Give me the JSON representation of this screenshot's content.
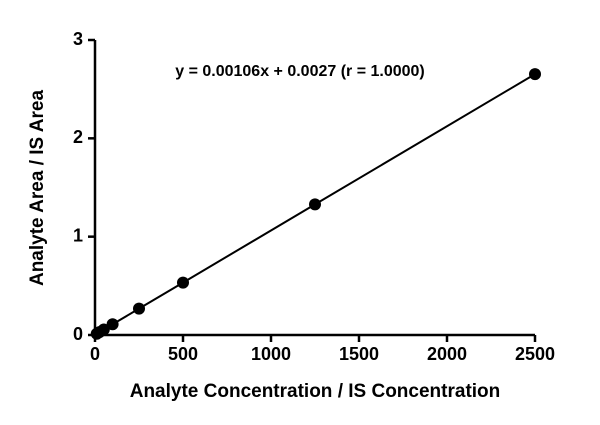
{
  "chart_data": {
    "type": "scatter",
    "annotation": "y = 0.00106x + 0.0027 (r = 1.0000)",
    "xlabel": "Analyte Concentration / IS Concentration",
    "ylabel": "Analyte Area / IS Area",
    "x": [
      10,
      25,
      50,
      100,
      250,
      500,
      1250,
      2500
    ],
    "values": [
      0.013,
      0.029,
      0.056,
      0.109,
      0.268,
      0.533,
      1.328,
      2.653
    ],
    "color": "#000000",
    "line": true,
    "xlim": [
      0,
      2500
    ],
    "xticks": [
      0,
      500,
      1000,
      1500,
      2000,
      2500
    ],
    "ylim": [
      0,
      3
    ],
    "yticks": [
      0,
      1,
      2,
      3
    ],
    "grid": false
  }
}
